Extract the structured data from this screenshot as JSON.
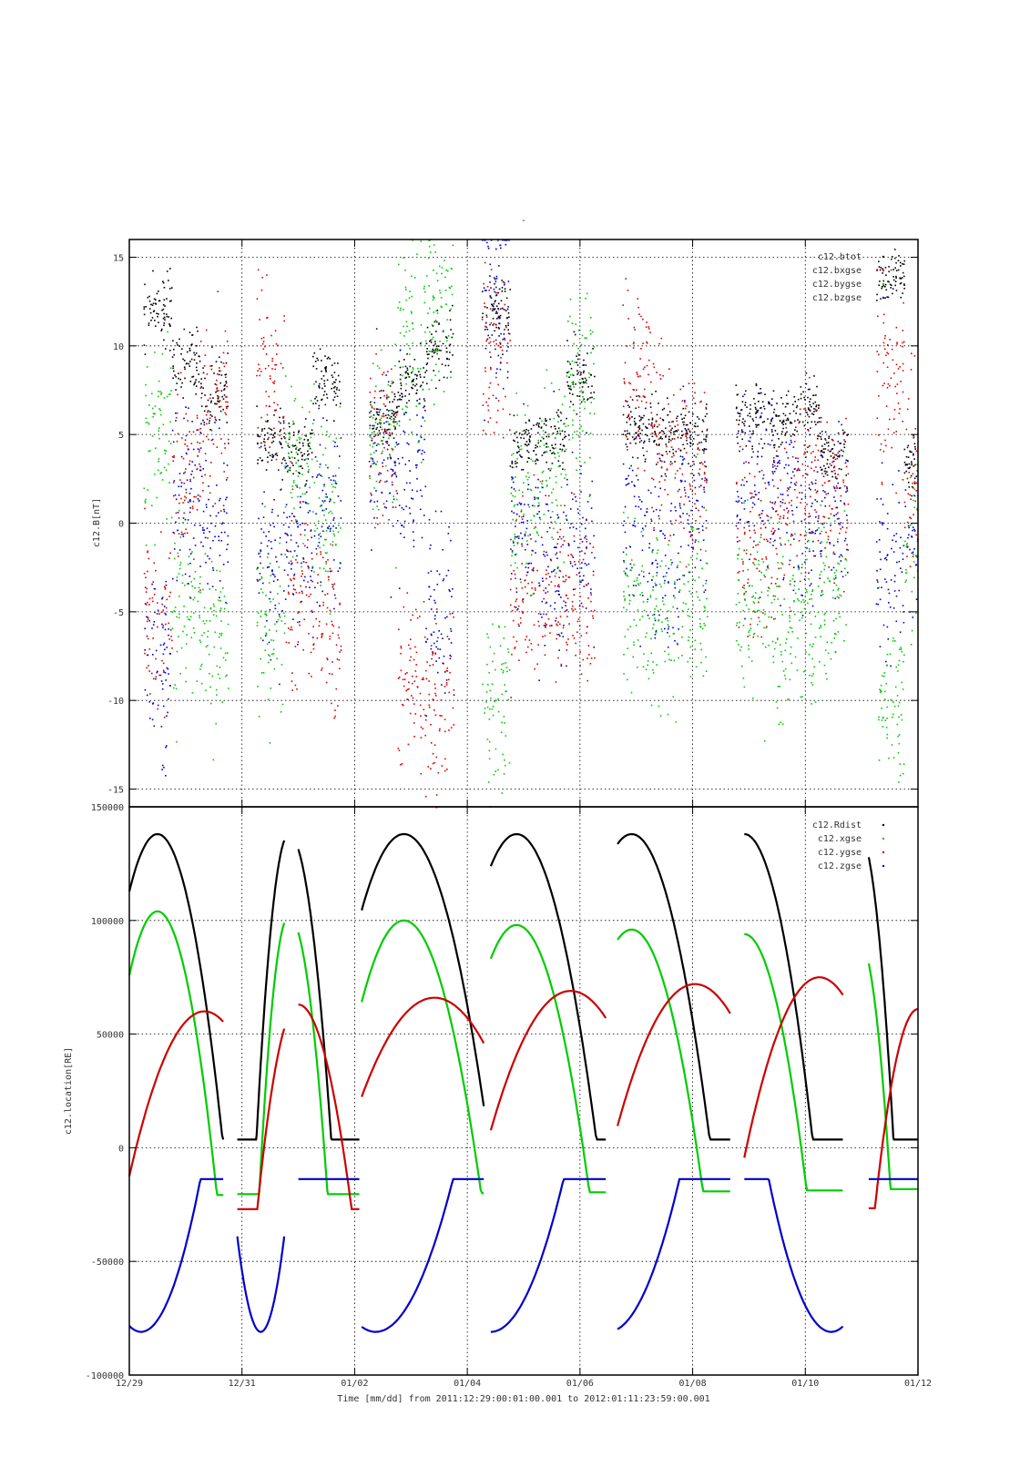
{
  "chart_data": [
    {
      "type": "scatter",
      "title": "-",
      "ylabel": "c12.B[nT]",
      "ylim": [
        -16,
        16
      ],
      "yticks": [
        -15,
        -10,
        -5,
        0,
        5,
        10,
        15
      ],
      "xlim": [
        "2011-12-29",
        "2012-01-12"
      ],
      "grid": true,
      "legend_position": "top-right",
      "legend": [
        "c12.btot",
        "c12.bxgse",
        "c12.bygse",
        "c12.bzgse"
      ],
      "series": [
        {
          "name": "c12.btot",
          "color": "#000000",
          "x": [
            "2011-12-29T12:00",
            "2011-12-30T00:00",
            "2011-12-30T12:00",
            "2011-12-31T12:00",
            "2012-01-01T00:00",
            "2012-01-01T12:00",
            "2012-01-02T12:00",
            "2012-01-03T00:00",
            "2012-01-03T12:00",
            "2012-01-04T12:00",
            "2012-01-05T00:00",
            "2012-01-05T12:00",
            "2012-01-06T00:00",
            "2012-01-07T00:00",
            "2012-01-07T12:00",
            "2012-01-08T00:00",
            "2012-01-09T00:00",
            "2012-01-09T12:00",
            "2012-01-10T00:00",
            "2012-01-10T12:00",
            "2012-01-11T12:00",
            "2012-01-12T00:00"
          ],
          "y": [
            12,
            9,
            7.5,
            4.5,
            4,
            8,
            6,
            8,
            10,
            12,
            4.5,
            5,
            8,
            5.5,
            5,
            5,
            6,
            6,
            6.5,
            4,
            14,
            3
          ]
        },
        {
          "name": "c12.bxgse",
          "color": "#dd0000",
          "x": [
            "2011-12-29T12:00",
            "2011-12-30T00:00",
            "2011-12-30T12:00",
            "2011-12-31T12:00",
            "2012-01-01T00:00",
            "2012-01-01T12:00",
            "2012-01-02T12:00",
            "2012-01-03T00:00",
            "2012-01-03T12:00",
            "2012-01-04T12:00",
            "2012-01-05T00:00",
            "2012-01-05T12:00",
            "2012-01-06T00:00",
            "2012-01-07T00:00",
            "2012-01-07T12:00",
            "2012-01-08T00:00",
            "2012-01-09T00:00",
            "2012-01-09T12:00",
            "2012-01-10T00:00",
            "2012-01-10T12:00",
            "2012-01-11T12:00",
            "2012-01-12T00:00"
          ],
          "y": [
            -5,
            3,
            6,
            8,
            -3.5,
            -6,
            5,
            -9,
            -10,
            10,
            -3.5,
            -4,
            -4.5,
            9,
            4,
            3,
            -1,
            0,
            2,
            1,
            8,
            2.5
          ]
        },
        {
          "name": "c12.bygse",
          "color": "#00cc00",
          "x": [
            "2011-12-29T12:00",
            "2011-12-30T00:00",
            "2011-12-30T12:00",
            "2011-12-31T12:00",
            "2012-01-01T00:00",
            "2012-01-01T12:00",
            "2012-01-02T12:00",
            "2012-01-03T00:00",
            "2012-01-03T12:00",
            "2012-01-04T12:00",
            "2012-01-05T00:00",
            "2012-01-05T12:00",
            "2012-01-06T00:00",
            "2012-01-07T00:00",
            "2012-01-07T12:00",
            "2012-01-08T00:00",
            "2012-01-09T00:00",
            "2012-01-09T12:00",
            "2012-01-10T00:00",
            "2012-01-10T12:00",
            "2012-01-11T12:00",
            "2012-01-12T00:00"
          ],
          "y": [
            5,
            -5,
            -6.5,
            -5,
            3,
            1,
            5,
            10,
            12,
            -10,
            1,
            3,
            8,
            -4,
            -5,
            -4,
            -5,
            -5.5,
            -5,
            -4,
            -10,
            -1
          ]
        },
        {
          "name": "c12.bzgse",
          "color": "#0000cc",
          "x": [
            "2011-12-29T12:00",
            "2011-12-30T00:00",
            "2011-12-30T12:00",
            "2011-12-31T12:00",
            "2012-01-01T00:00",
            "2012-01-01T12:00",
            "2012-01-02T12:00",
            "2012-01-03T00:00",
            "2012-01-03T12:00",
            "2012-01-04T12:00",
            "2012-01-05T00:00",
            "2012-01-05T12:00",
            "2012-01-06T00:00",
            "2012-01-07T00:00",
            "2012-01-07T12:00",
            "2012-01-08T00:00",
            "2012-01-09T00:00",
            "2012-01-09T12:00",
            "2012-01-10T00:00",
            "2012-01-10T12:00",
            "2012-01-11T12:00",
            "2012-01-12T00:00"
          ],
          "y": [
            -8,
            2,
            1,
            -2,
            -2,
            1,
            4,
            3,
            -5,
            13,
            0,
            -3.5,
            -1,
            0,
            -2,
            1,
            2,
            2.5,
            0,
            1,
            -3,
            0
          ]
        }
      ]
    },
    {
      "type": "scatter",
      "ylabel": "c12.location[RE]",
      "ylim": [
        -100000,
        150000
      ],
      "yticks": [
        -100000,
        -50000,
        0,
        50000,
        100000,
        150000
      ],
      "xlim": [
        "2011-12-29",
        "2012-01-12"
      ],
      "xticks": [
        "12/29",
        "12/31",
        "01/02",
        "01/04",
        "01/06",
        "01/08",
        "01/10",
        "01/12"
      ],
      "xlabel": "Time [mm/dd]  from 2011:12:29:00:01:00.001  to  2012:01:11:23:59:00.001",
      "grid": true,
      "legend_position": "top-right",
      "legend": [
        "c12.Rdist",
        "c12.xgse",
        "c12.ygse",
        "c12.zgse"
      ],
      "orbit_segments": [
        {
          "start": "2011-12-29T00:00",
          "end": "2011-12-30T16:00"
        },
        {
          "start": "2011-12-30T22:00",
          "end": "2011-12-31T18:00"
        },
        {
          "start": "2012-01-01T00:00",
          "end": "2012-01-02T02:00"
        },
        {
          "start": "2012-01-02T03:00",
          "end": "2012-01-04T07:00"
        },
        {
          "start": "2012-01-04T10:00",
          "end": "2012-01-06T11:00"
        },
        {
          "start": "2012-01-06T16:00",
          "end": "2012-01-08T16:00"
        },
        {
          "start": "2012-01-08T22:00",
          "end": "2012-01-10T16:00"
        },
        {
          "start": "2012-01-11T03:00",
          "end": "2012-01-12T00:00"
        }
      ],
      "series": [
        {
          "name": "c12.Rdist",
          "color": "#000000",
          "x": [
            "2011-12-29T12:00",
            "2011-12-31T20:00",
            "2012-01-02T21:00",
            "2012-01-04T21:00",
            "2012-01-06T22:00",
            "2012-01-08T22:00",
            "2012-01-10T23:00"
          ],
          "y": [
            138000,
            138000,
            138000,
            138000,
            138000,
            138000,
            138000
          ]
        },
        {
          "name": "c12.xgse",
          "color": "#00cc00",
          "x": [
            "2011-12-29T12:00",
            "2011-12-31T20:00",
            "2012-01-02T21:00",
            "2012-01-04T21:00",
            "2012-01-06T22:00",
            "2012-01-08T22:00",
            "2012-01-10T23:00"
          ],
          "y": [
            104000,
            102000,
            100000,
            98000,
            96000,
            94000,
            91000
          ]
        },
        {
          "name": "c12.ygse",
          "color": "#cc0000",
          "x": [
            "2011-12-30T08:00",
            "2012-01-01T00:00",
            "2012-01-03T10:00",
            "2012-01-05T20:00",
            "2012-01-08T01:00",
            "2012-01-10T06:00",
            "2012-01-12T00:00"
          ],
          "y": [
            60000,
            63000,
            66000,
            69000,
            72000,
            75000,
            61000
          ]
        },
        {
          "name": "c12.zgse",
          "color": "#0000cc",
          "x": [
            "2011-12-29T05:00",
            "2011-12-31T08:00",
            "2012-01-02T09:00",
            "2012-01-04T10:00",
            "2012-01-06T12:00",
            "2012-01-08T12:00",
            "2012-01-10T11:00"
          ],
          "y": [
            -81000,
            -81000,
            -81000,
            -81000,
            -81000,
            -81000,
            -81000
          ]
        }
      ]
    }
  ]
}
